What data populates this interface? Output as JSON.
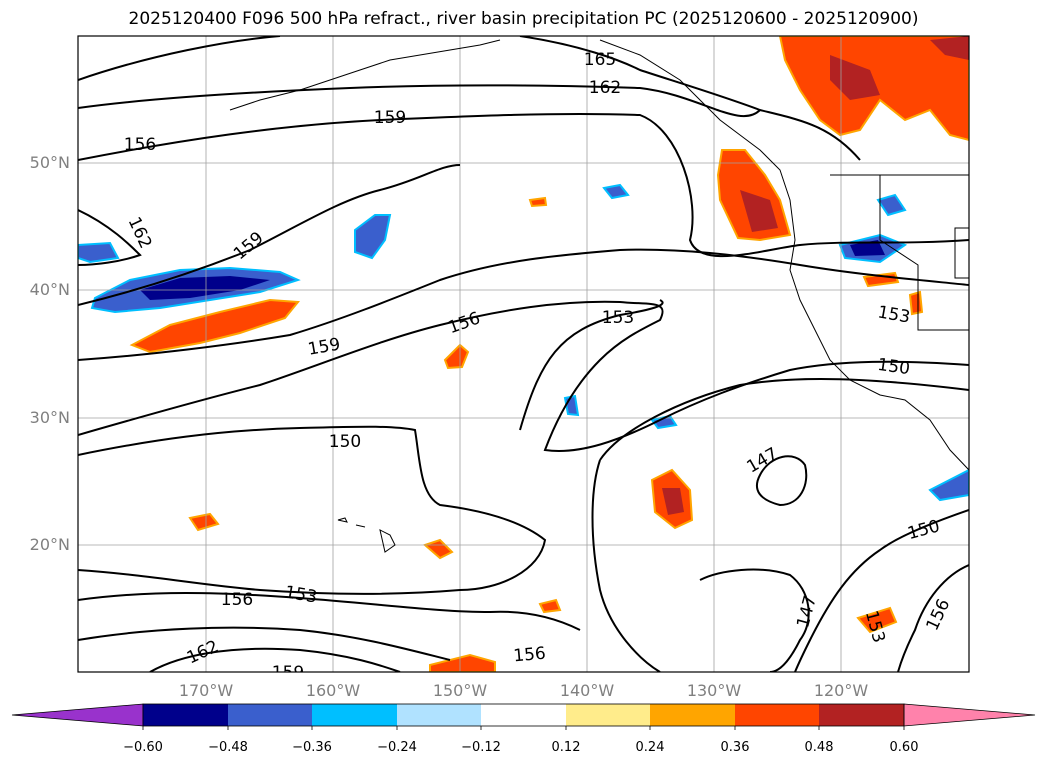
{
  "title": "2025120400 F096 500 hPa refract., river basin precipitation PC (2025120600 - 2025120900)",
  "lat_labels": [
    "50°N",
    "40°N",
    "30°N",
    "20°N"
  ],
  "lon_labels": [
    "170°W",
    "160°W",
    "150°W",
    "140°W",
    "130°W",
    "120°W"
  ],
  "contour_labels": [
    "165",
    "162",
    "159",
    "156",
    "162",
    "159",
    "159",
    "156",
    "153",
    "153",
    "150",
    "150",
    "147",
    "150",
    "156",
    "153",
    "162",
    "159",
    "156",
    "147",
    "153",
    "156"
  ],
  "colorbar": {
    "ticks": [
      "−0.60",
      "−0.48",
      "−0.36",
      "−0.24",
      "−0.12",
      "0.12",
      "0.24",
      "0.36",
      "0.48",
      "0.60"
    ],
    "colors": [
      "#9932cc",
      "#00008b",
      "#3a5fcd",
      "#00bfff",
      "#b0e2ff",
      "#ffffff",
      "#ffec8b",
      "#ffa500",
      "#ff4500",
      "#b22222",
      "#ff82ab"
    ]
  }
}
